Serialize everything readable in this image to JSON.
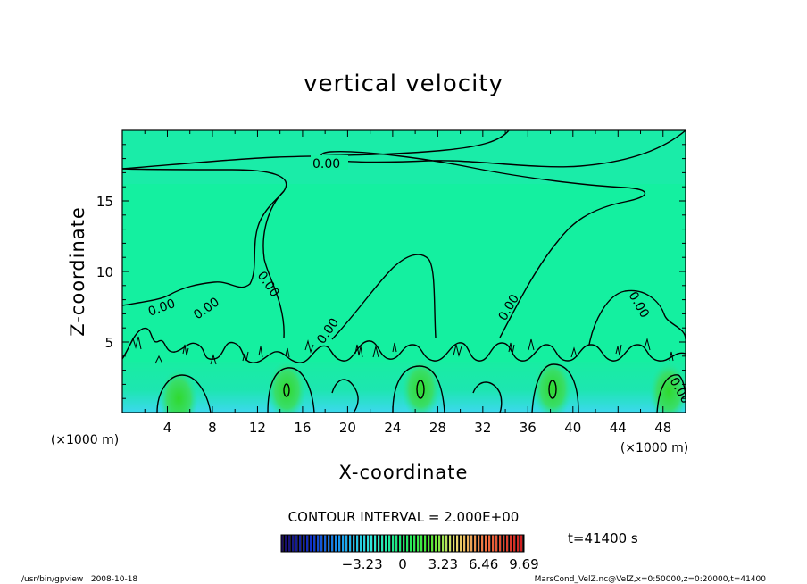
{
  "chart_data": {
    "type": "contour",
    "title": "vertical velocity",
    "xlabel": "X-coordinate",
    "ylabel": "Z-coordinate",
    "xunit": "(×1000 m)",
    "yunit": "(×1000 m)",
    "xlim": [
      0,
      50
    ],
    "ylim": [
      0,
      20
    ],
    "xticks": [
      4,
      8,
      12,
      16,
      20,
      24,
      28,
      32,
      36,
      40,
      44,
      48
    ],
    "yticks": [
      5,
      10,
      15
    ],
    "contour_label": "0.00",
    "contour_interval_text": "CONTOUR INTERVAL = 2.000E+00",
    "time_text": "t=41400 s",
    "colorbar": {
      "tick_labels": [
        "−3.23",
        "0",
        "3.23",
        "6.46",
        "9.69"
      ],
      "tick_values": [
        -3.23,
        0,
        3.23,
        6.46,
        9.69
      ],
      "range": [
        -9.69,
        9.69
      ]
    },
    "updraft_cores": [
      {
        "x": 5.0,
        "z": 1.0
      },
      {
        "x": 14.6,
        "z": 1.6
      },
      {
        "x": 26.5,
        "z": 1.7
      },
      {
        "x": 38.2,
        "z": 1.7
      },
      {
        "x": 48.5,
        "z": 1.5
      }
    ],
    "grid": false
  },
  "footer": {
    "left": "/usr/bin/gpview   2008-10-18",
    "right": "MarsCond_VelZ.nc@VelZ,x=0:50000,z=0:20000,t=41400"
  },
  "colors": {
    "field_background": "#14f0a0",
    "contour_line": "#000000",
    "near_surface_low": "#3fd8f2",
    "near_surface_high": "#2ce02c"
  }
}
